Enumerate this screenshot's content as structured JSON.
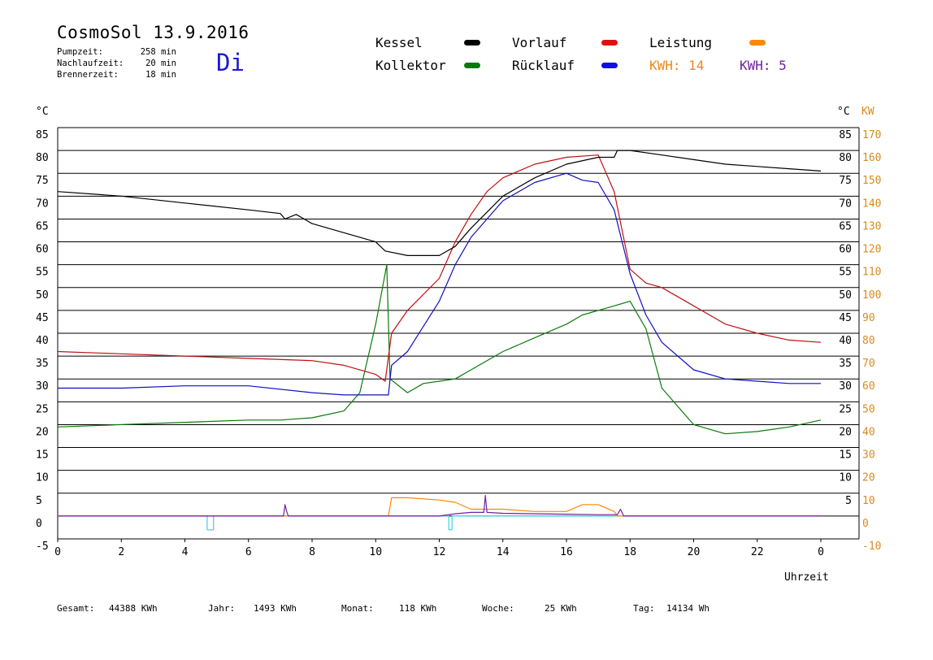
{
  "header": {
    "title": "CosmoSol 13.9.2016",
    "day": "Di",
    "info": [
      {
        "label": "Pumpzeit:",
        "value": "258 min"
      },
      {
        "label": "Nachlaufzeit:",
        "value": "20 min"
      },
      {
        "label": "Brennerzeit:",
        "value": "18 min"
      }
    ]
  },
  "legend": {
    "kessel": "Kessel",
    "kollektor": "Kollektor",
    "vorlauf": "Vorlauf",
    "ruecklauf": "Rücklauf",
    "leistung": "Leistung",
    "kwh_orange": "KWH: 14",
    "kwh_purple": "KWH: 5"
  },
  "colors": {
    "kessel": "#000000",
    "kollektor": "#0a7a0a",
    "vorlauf": "#c01010",
    "ruecklauf": "#1010c0",
    "leistung": "#ff8800",
    "purple": "#7020a0",
    "cyan": "#40d0d8",
    "axis_right": "#d98a20"
  },
  "footer": {
    "gesamt_label": "Gesamt:",
    "gesamt_value": "44388 KWh",
    "jahr_label": "Jahr:",
    "jahr_value": "1493 KWh",
    "monat_label": "Monat:",
    "monat_value": "118 KWh",
    "woche_label": "Woche:",
    "woche_value": "25 KWh",
    "tag_label": "Tag:",
    "tag_value": "14134 Wh"
  },
  "chart_data": {
    "type": "line",
    "xlabel": "Uhrzeit",
    "ylabel_left": "°C",
    "ylabel_right_1": "°C",
    "ylabel_right_2": "KW",
    "xlim": [
      0,
      24
    ],
    "ylim": [
      -5,
      85
    ],
    "x_ticks": [
      "0",
      "2",
      "4",
      "6",
      "8",
      "10",
      "12",
      "14",
      "16",
      "18",
      "20",
      "22",
      "0"
    ],
    "y_ticks_left": [
      "85",
      "80",
      "75",
      "70",
      "65",
      "60",
      "55",
      "50",
      "45",
      "40",
      "35",
      "30",
      "25",
      "20",
      "15",
      "10",
      "5",
      "0",
      "-5"
    ],
    "y_ticks_right_c": [
      "85",
      "80",
      "75",
      "70",
      "65",
      "60",
      "55",
      "50",
      "45",
      "40",
      "35",
      "30",
      "25",
      "20",
      "15",
      "10",
      "5"
    ],
    "y_ticks_right_kw": [
      "170",
      "160",
      "150",
      "140",
      "130",
      "120",
      "110",
      "100",
      "90",
      "80",
      "70",
      "60",
      "50",
      "40",
      "30",
      "20",
      "10",
      "0",
      "-10"
    ],
    "gridlines": true,
    "series": [
      {
        "name": "Kessel",
        "x": [
          0,
          2,
          4,
          6,
          7,
          7.15,
          7.5,
          8,
          9,
          10,
          10.3,
          11,
          12,
          12.5,
          13,
          14,
          15,
          16,
          17,
          17.5,
          17.6,
          18,
          19,
          20,
          21,
          22,
          23,
          24
        ],
        "y": [
          71,
          70,
          68.5,
          67,
          66.2,
          65,
          66,
          64,
          62,
          60,
          58,
          57,
          57,
          59,
          63,
          70,
          74,
          77,
          78.5,
          78.5,
          80,
          80,
          79,
          78,
          77,
          76.5,
          76,
          75.5
        ]
      },
      {
        "name": "Kollektor",
        "x": [
          0,
          2,
          4,
          6,
          7,
          8,
          9,
          9.5,
          10,
          10.35,
          10.45,
          11,
          11.5,
          12,
          12.5,
          13,
          14,
          15,
          16,
          16.5,
          17,
          17.5,
          18,
          18.5,
          19,
          20,
          21,
          22,
          23,
          24
        ],
        "y": [
          19.5,
          20,
          20.5,
          21,
          21,
          21.5,
          23,
          27,
          42,
          55,
          30,
          27,
          29,
          29.5,
          30,
          32,
          36,
          39,
          42,
          44,
          45,
          46,
          47,
          41,
          28,
          20,
          18,
          18.5,
          19.5,
          21
        ]
      },
      {
        "name": "Vorlauf",
        "x": [
          0,
          2,
          4,
          6,
          8,
          9,
          10,
          10.3,
          10.5,
          11,
          12,
          12.5,
          13,
          13.5,
          14,
          15,
          16,
          17,
          17.5,
          18,
          18.5,
          19,
          20,
          21,
          22,
          23,
          24
        ],
        "y": [
          36,
          35.5,
          35,
          34.5,
          34,
          33,
          31,
          29.5,
          40,
          45,
          52,
          60,
          66,
          71,
          74,
          77,
          78.5,
          79,
          71,
          54,
          51,
          50,
          46,
          42,
          40,
          38.5,
          38
        ]
      },
      {
        "name": "Rücklauf",
        "x": [
          0,
          2,
          4,
          6,
          8,
          9,
          10,
          10.4,
          10.5,
          11,
          12,
          12.5,
          13,
          14,
          15,
          16,
          16.5,
          17,
          17.5,
          18,
          18.5,
          19,
          20,
          21,
          22,
          23,
          24
        ],
        "y": [
          28,
          28,
          28.5,
          28.5,
          27,
          26.5,
          26.5,
          26.5,
          33,
          36,
          47,
          55,
          61,
          69,
          73,
          75,
          73.5,
          73,
          67,
          53,
          44,
          38,
          32,
          30,
          29.5,
          29,
          29
        ]
      },
      {
        "name": "Leistung",
        "x": [
          0,
          10.4,
          10.5,
          11,
          12,
          12.5,
          13,
          14,
          15,
          16,
          16.5,
          17,
          17.5,
          17.6,
          24
        ],
        "y": [
          0,
          0,
          4,
          4,
          3.5,
          3,
          1.5,
          1.5,
          1,
          1,
          2.5,
          2.5,
          1,
          0,
          0
        ]
      },
      {
        "name": "KWH purple",
        "x": [
          0,
          7.1,
          7.15,
          7.2,
          7.25,
          12,
          12.5,
          13,
          13.4,
          13.45,
          13.5,
          14,
          15,
          16,
          17,
          17.6,
          17.7,
          17.8,
          24
        ],
        "y": [
          0,
          0,
          2.5,
          1,
          0,
          0,
          0.5,
          0.8,
          0.8,
          4.5,
          0.8,
          0.6,
          0.5,
          0.4,
          0.3,
          0.3,
          1.5,
          0,
          0
        ]
      },
      {
        "name": "Cyan",
        "x": [
          0,
          4.7,
          4.7,
          4.9,
          4.9,
          12.3,
          12.3,
          12.4,
          12.4,
          24
        ],
        "y": [
          0,
          0,
          -3,
          -3,
          0,
          0,
          -3,
          -3,
          0,
          0
        ]
      }
    ]
  }
}
